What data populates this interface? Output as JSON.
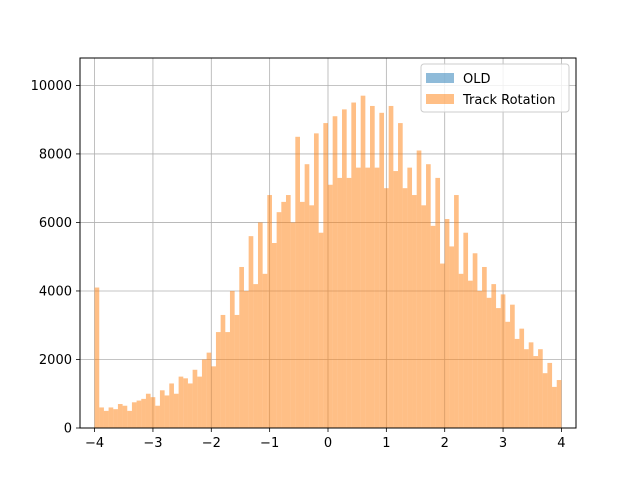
{
  "chart_data": {
    "type": "bar",
    "subtype": "overlaid-histogram",
    "grid": true,
    "legend_position": "top-right",
    "xlim": [
      -4.25,
      4.25
    ],
    "ylim": [
      0,
      10800
    ],
    "xticks": [
      "-4",
      "-3",
      "-2",
      "-1",
      "0",
      "1",
      "2",
      "3",
      "4"
    ],
    "yticks": [
      "0",
      "2000",
      "4000",
      "6000",
      "8000",
      "10000"
    ],
    "bin_range": [
      -4.0,
      4.0
    ],
    "bins": 100,
    "series": [
      {
        "name": "OLD",
        "color": "#1f77b4",
        "opacity": 0.5,
        "values": [
          0,
          0,
          0,
          0,
          0,
          0,
          0,
          0,
          0,
          0,
          0,
          0,
          0,
          0,
          0,
          0,
          0,
          0,
          0,
          0,
          0,
          0,
          0,
          0,
          0,
          0,
          0,
          0,
          0,
          0,
          0,
          0,
          0,
          0,
          0,
          0,
          0,
          0,
          0,
          0,
          0,
          0,
          0,
          0,
          0,
          0,
          0,
          0,
          0,
          0,
          0,
          0,
          0,
          0,
          0,
          0,
          0,
          0,
          0,
          0,
          0,
          0,
          0,
          0,
          0,
          0,
          0,
          0,
          0,
          0,
          0,
          0,
          0,
          0,
          0,
          0,
          0,
          0,
          0,
          0,
          0,
          0,
          0,
          0,
          0,
          0,
          0,
          0,
          0,
          0,
          0,
          0,
          0,
          0,
          0,
          0,
          0,
          0,
          0,
          0
        ]
      },
      {
        "name": "Track Rotation",
        "color": "#ff7f0e",
        "opacity": 0.5,
        "values": [
          4100,
          600,
          500,
          600,
          550,
          700,
          650,
          500,
          750,
          800,
          850,
          1000,
          900,
          650,
          1100,
          950,
          1300,
          1000,
          1500,
          1450,
          1300,
          1700,
          1500,
          2000,
          2200,
          1800,
          2800,
          3300,
          2800,
          4000,
          3300,
          4700,
          4000,
          5600,
          4200,
          6000,
          4500,
          6800,
          5400,
          6300,
          6600,
          6800,
          6000,
          8500,
          6600,
          7700,
          6500,
          8600,
          5700,
          8900,
          7100,
          9100,
          7300,
          9300,
          7300,
          9500,
          7600,
          9700,
          7600,
          9400,
          7600,
          9200,
          7000,
          9400,
          7500,
          8900,
          7000,
          7600,
          6800,
          8100,
          6500,
          7700,
          5900,
          7300,
          4800,
          6100,
          5300,
          6800,
          4500,
          5700,
          4300,
          5100,
          4000,
          4700,
          3800,
          4200,
          3500,
          3900,
          3100,
          3600,
          2600,
          2900,
          2300,
          2500,
          2100,
          2300,
          1600,
          1900,
          1200,
          1400
        ]
      }
    ]
  }
}
